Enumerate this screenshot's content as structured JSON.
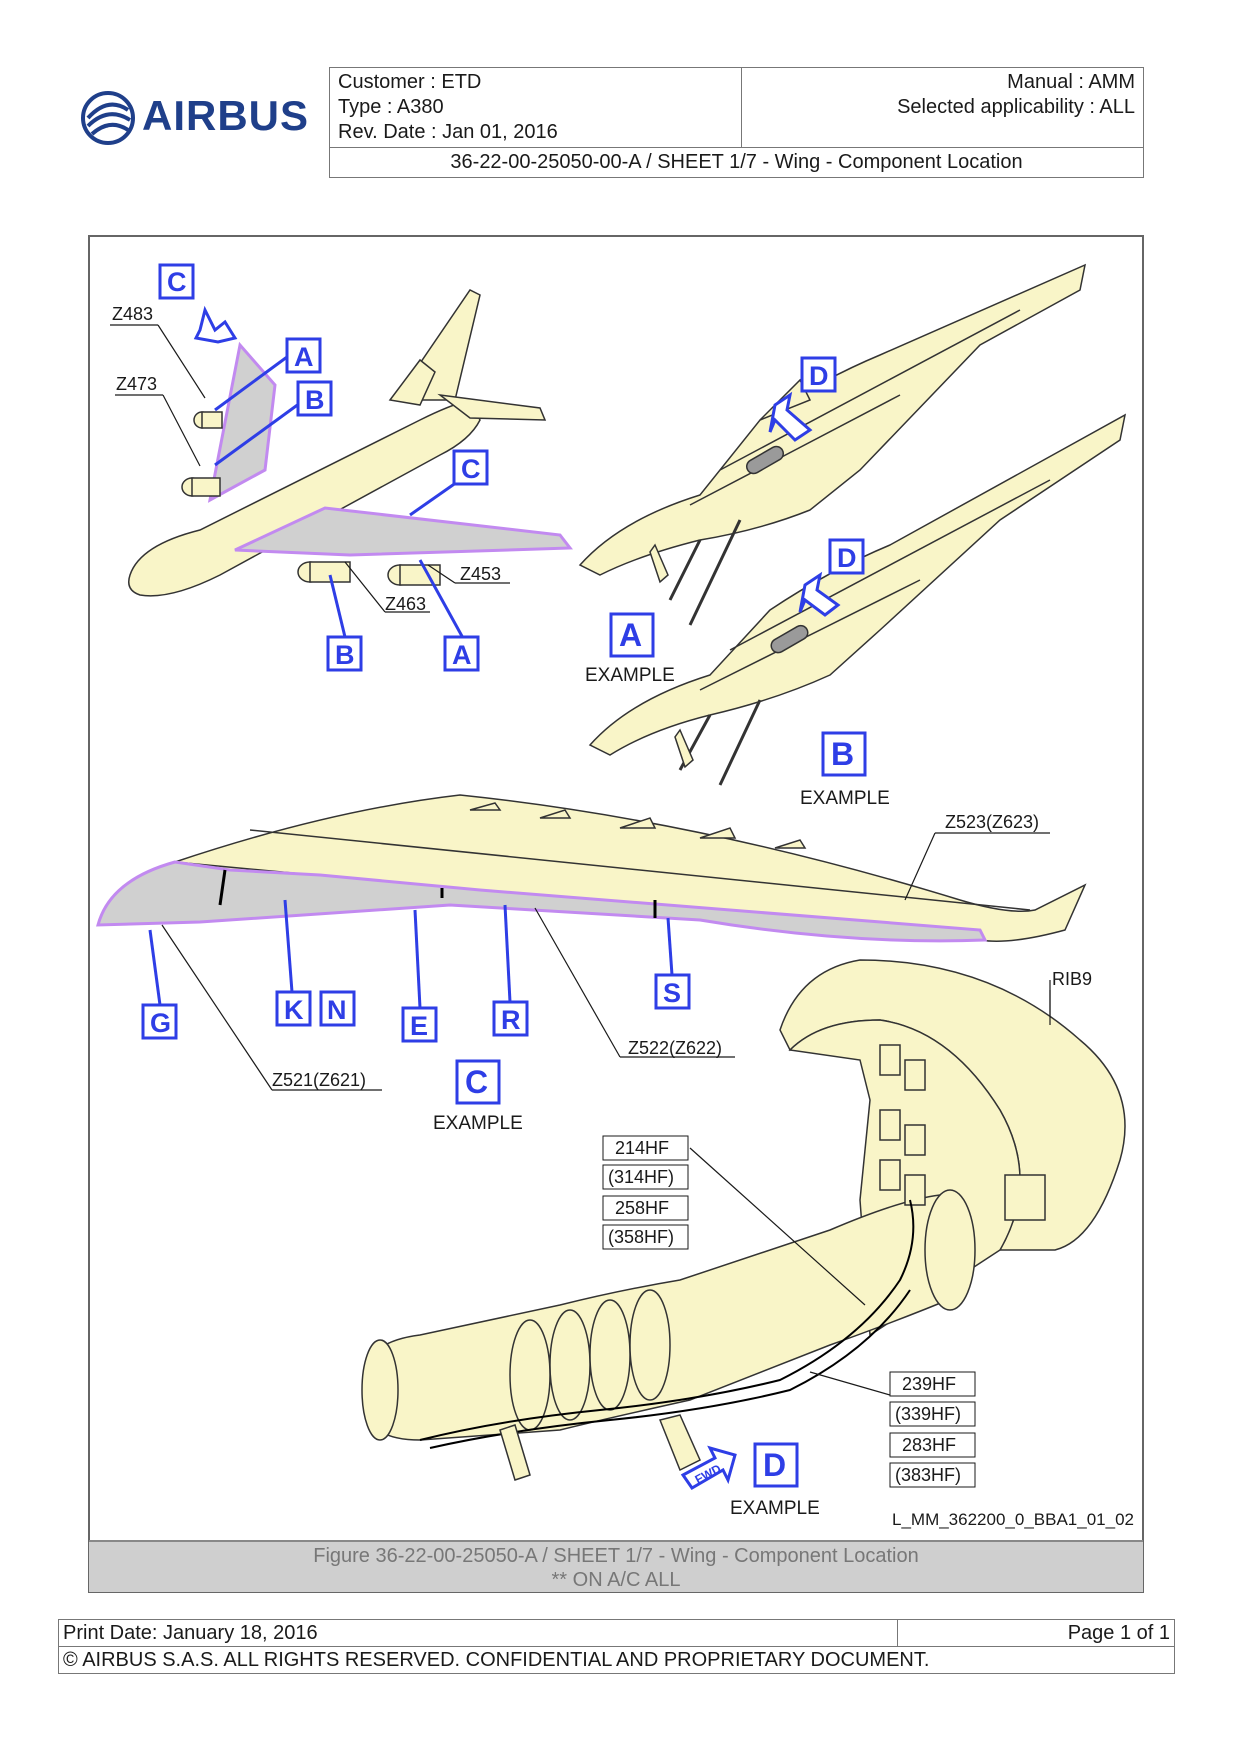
{
  "header": {
    "logo_text": "AIRBUS",
    "customer": "Customer : ETD",
    "type": "Type : A380",
    "rev_date": "Rev. Date : Jan 01, 2016",
    "manual": "Manual : AMM",
    "applicability": "Selected applicability : ALL",
    "doc_title": "36-22-00-25050-00-A / SHEET 1/7 - Wing - Component Location"
  },
  "figure": {
    "zones": {
      "z483": "Z483",
      "z473": "Z473",
      "z453": "Z453",
      "z463": "Z463",
      "z523": "Z523(Z623)",
      "z521": "Z521(Z621)",
      "z522": "Z522(Z622)",
      "rib9": "RIB9"
    },
    "refs": {
      "A": "A",
      "B": "B",
      "C": "C",
      "D": "D",
      "E": "E",
      "G": "G",
      "K": "K",
      "N": "N",
      "R": "R",
      "S": "S"
    },
    "example": "EXAMPLE",
    "equipment": {
      "e1": "214HF",
      "e2": "(314HF)",
      "e3": "258HF",
      "e4": "(358HF)",
      "e5": "239HF",
      "e6": "(339HF)",
      "e7": "283HF",
      "e8": "(383HF)"
    },
    "fwd": "FWD",
    "drawing_id": "L_MM_362200_0_BBA1_01_02",
    "colors": {
      "fill": "#f9f5c8",
      "highlight": "#c28af0",
      "ref_blue": "#2e3ee6",
      "gray": "#cfcfcf"
    }
  },
  "caption": {
    "line1": "Figure 36-22-00-25050-A / SHEET 1/7 - Wing - Component Location",
    "line2": "** ON A/C ALL"
  },
  "footer": {
    "print_date": "Print Date: January 18, 2016",
    "page": "Page 1 of 1",
    "copyright": "© AIRBUS S.A.S. ALL RIGHTS RESERVED. CONFIDENTIAL AND PROPRIETARY DOCUMENT."
  }
}
